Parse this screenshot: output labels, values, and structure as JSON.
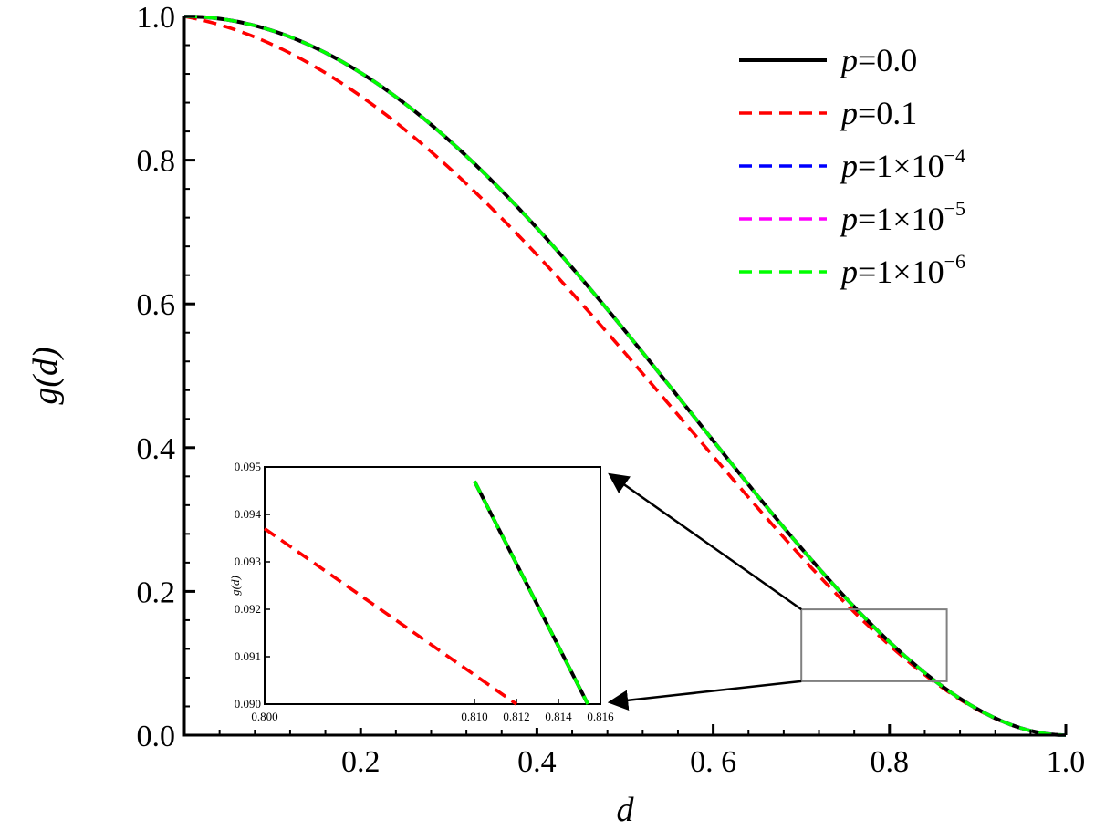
{
  "chart_data": [
    {
      "type": "line",
      "title": "",
      "xlabel": "d",
      "ylabel": "g(d)",
      "xlim": [
        0.0,
        1.0
      ],
      "ylim": [
        0.0,
        1.0
      ],
      "xticks": [
        "0.2",
        "0.4",
        "0. 6",
        "0.8",
        "1.0"
      ],
      "yticks": [
        "0.0",
        "0.2",
        "0.4",
        "0.6",
        "0.8",
        "1.0"
      ],
      "grid": false,
      "legend_position": "top-right",
      "series": [
        {
          "name": "p=0.0",
          "label": {
            "p": "p",
            "rest": "=0.0",
            "exp": ""
          },
          "color": "#000000",
          "style": "solid",
          "p": 0.0
        },
        {
          "name": "p=0.1",
          "label": {
            "p": "p",
            "rest": "=0.1",
            "exp": ""
          },
          "color": "#ff0000",
          "style": "dashed",
          "p": 0.1
        },
        {
          "name": "p=1×10^-4",
          "label": {
            "p": "p",
            "rest": "=1×10",
            "exp": "−4"
          },
          "color": "#0000ff",
          "style": "dashed",
          "p": 0.0001
        },
        {
          "name": "p=1×10^-5",
          "label": {
            "p": "p",
            "rest": "=1×10",
            "exp": "−5"
          },
          "color": "#ff00ff",
          "style": "dashed",
          "p": 1e-05
        },
        {
          "name": "p=1×10^-6",
          "label": {
            "p": "p",
            "rest": "=1×10",
            "exp": "−6"
          },
          "color": "#00ff00",
          "style": "dashed",
          "p": 1e-06
        }
      ],
      "zoom_region": {
        "x": [
          0.7,
          0.865
        ],
        "y": [
          0.075,
          0.175
        ]
      }
    },
    {
      "type": "line",
      "title": "",
      "xlabel": "",
      "ylabel": "g(d)",
      "xlim": [
        0.8,
        0.816
      ],
      "ylim": [
        0.09,
        0.095
      ],
      "xticks": [
        "0.800",
        "0.810",
        "0.812",
        "0.814",
        "0.816"
      ],
      "yticks": [
        "0.090",
        "0.091",
        "0.092",
        "0.093",
        "0.094",
        "0.095"
      ],
      "series_segments": [
        {
          "series": "p=0.1",
          "color": "#ff0000",
          "style": "dashed",
          "x": [
            0.8,
            0.812
          ],
          "y": [
            0.0937,
            0.09
          ]
        },
        {
          "series": "p=0.0",
          "color": "#000000",
          "style": "solid",
          "x": [
            0.81,
            0.8154
          ],
          "y": [
            0.0947,
            0.09
          ]
        },
        {
          "series": "p=1×10^-6",
          "color": "#00ff00",
          "style": "dashed",
          "x": [
            0.81,
            0.8154
          ],
          "y": [
            0.0947,
            0.09
          ]
        }
      ]
    }
  ]
}
